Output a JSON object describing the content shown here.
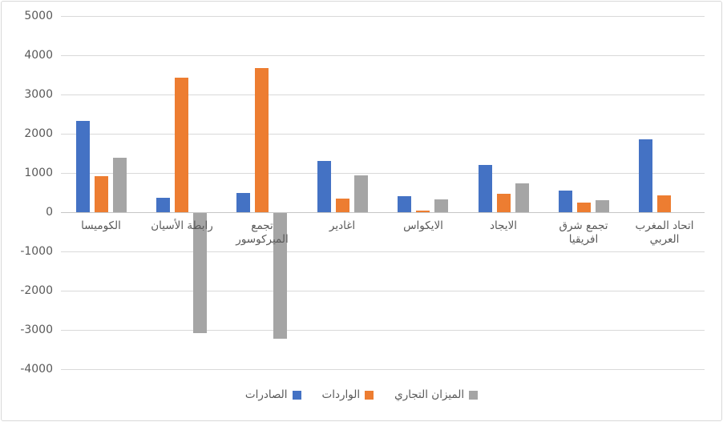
{
  "chart_data": {
    "type": "bar",
    "title": "",
    "direction": "rtl-labels",
    "categories": [
      "الكوميسا",
      "رابطة الأسيان",
      "تجمع الميركوسور",
      "اغادير",
      "الايكواس",
      "الايجاد",
      "تجمع شرق افريقيا",
      "اتحاد المغرب العربي"
    ],
    "series": [
      {
        "name": "الصادرات",
        "color": "#4472C4",
        "values": [
          2320,
          360,
          490,
          1300,
          400,
          1200,
          550,
          1860
        ]
      },
      {
        "name": "الواردات",
        "color": "#ED7D31",
        "values": [
          920,
          3420,
          3680,
          350,
          50,
          460,
          240,
          430
        ]
      },
      {
        "name": "الميزان التجاري",
        "color": "#A5A5A5",
        "values": [
          1390,
          -3060,
          -3210,
          930,
          330,
          730,
          300,
          0
        ]
      }
    ],
    "y_axis": {
      "min": -4000,
      "max": 5000,
      "step": 1000,
      "tick_labels": [
        "5000",
        "4000",
        "3000",
        "2000",
        "1000",
        "0",
        "-1000",
        "-2000",
        "-3000",
        "-4000"
      ]
    },
    "grid": true,
    "legend_position": "bottom",
    "colors": {
      "background": "#FFFFFF",
      "border": "#D9D9D9",
      "gridline": "#D9D9D9",
      "axis_line": "#C6C6C6",
      "text": "#595959"
    }
  }
}
